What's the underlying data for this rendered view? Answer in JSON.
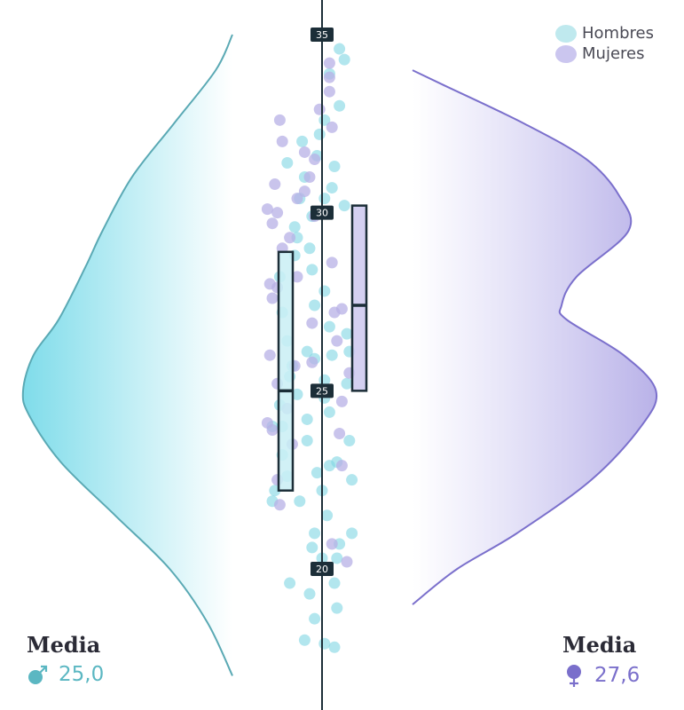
{
  "colors": {
    "male": "#7fd6e3",
    "male_stroke": "#5aa9b4",
    "female": "#b7b0e6",
    "female_stroke": "#7b70cc",
    "axis": "#1c2e38",
    "tick_bg": "#1c2e38",
    "tick_text": "#ffffff",
    "male_text": "#5bb7c2",
    "female_text": "#7a6fcb"
  },
  "legend": [
    {
      "label": "Hombres",
      "color": "#bfe9ee"
    },
    {
      "label": "Mujeres",
      "color": "#cbc6ef"
    }
  ],
  "means": {
    "male": {
      "title": "Media",
      "value": "25,0",
      "icon": "male-symbol-icon"
    },
    "female": {
      "title": "Media",
      "value": "27,6",
      "icon": "female-symbol-icon"
    }
  },
  "chart_data": {
    "type": "raincloud",
    "axis": {
      "min": 17,
      "max": 35,
      "ticks": [
        20,
        25,
        30,
        35
      ]
    },
    "series": [
      {
        "name": "Hombres",
        "box": {
          "q1": 22.2,
          "median": 25.0,
          "q3": 28.9
        },
        "density": [
          {
            "y": 17.0,
            "d": 0.0
          },
          {
            "y": 18.5,
            "d": 0.12
          },
          {
            "y": 20.0,
            "d": 0.3
          },
          {
            "y": 21.5,
            "d": 0.56
          },
          {
            "y": 23.0,
            "d": 0.82
          },
          {
            "y": 24.3,
            "d": 0.97
          },
          {
            "y": 25.0,
            "d": 1.0
          },
          {
            "y": 26.0,
            "d": 0.95
          },
          {
            "y": 27.0,
            "d": 0.83
          },
          {
            "y": 28.5,
            "d": 0.7
          },
          {
            "y": 29.5,
            "d": 0.62
          },
          {
            "y": 31.0,
            "d": 0.48
          },
          {
            "y": 32.5,
            "d": 0.28
          },
          {
            "y": 34.0,
            "d": 0.08
          },
          {
            "y": 35.0,
            "d": 0.0
          }
        ],
        "points": [
          [
            18.0,
            -0.7
          ],
          [
            17.8,
            0.5
          ],
          [
            18.6,
            -0.3
          ],
          [
            18.9,
            0.6
          ],
          [
            19.6,
            -1.3
          ],
          [
            19.3,
            -0.5
          ],
          [
            19.6,
            0.5
          ],
          [
            20.3,
            0.6
          ],
          [
            20.3,
            0.0
          ],
          [
            20.7,
            0.7
          ],
          [
            20.6,
            -0.4
          ],
          [
            21.0,
            1.2
          ],
          [
            21.0,
            -0.3
          ],
          [
            21.5,
            0.2
          ],
          [
            21.9,
            -2.0
          ],
          [
            21.9,
            -0.9
          ],
          [
            22.2,
            -1.9
          ],
          [
            22.2,
            0.0
          ],
          [
            22.5,
            1.2
          ],
          [
            22.6,
            -1.4
          ],
          [
            22.7,
            -0.2
          ],
          [
            22.9,
            0.3
          ],
          [
            23.2,
            -1.6
          ],
          [
            23.6,
            -0.6
          ],
          [
            23.6,
            1.1
          ],
          [
            24.0,
            -2.0
          ],
          [
            24.0,
            -1.6
          ],
          [
            24.2,
            -0.6
          ],
          [
            24.4,
            0.3
          ],
          [
            24.6,
            -1.7
          ],
          [
            24.8,
            0.1
          ],
          [
            24.9,
            -1.0
          ],
          [
            25.2,
            1.0
          ],
          [
            25.3,
            0.1
          ],
          [
            25.4,
            -1.3
          ],
          [
            25.9,
            -0.3
          ],
          [
            25.7,
            -1.2
          ],
          [
            26.0,
            0.4
          ],
          [
            26.1,
            1.1
          ],
          [
            26.1,
            -0.6
          ],
          [
            26.4,
            -1.4
          ],
          [
            26.6,
            1.0
          ],
          [
            26.8,
            0.3
          ],
          [
            27.4,
            -0.3
          ],
          [
            27.2,
            -1.6
          ],
          [
            27.8,
            0.1
          ],
          [
            28.2,
            -1.7
          ],
          [
            28.4,
            -0.4
          ],
          [
            28.8,
            -1.1
          ],
          [
            29.0,
            -0.5
          ],
          [
            29.3,
            -1.0
          ],
          [
            29.6,
            -1.1
          ],
          [
            29.9,
            -0.4
          ],
          [
            30.2,
            0.9
          ],
          [
            30.4,
            0.1
          ],
          [
            30.4,
            -0.9
          ],
          [
            30.7,
            0.4
          ],
          [
            31.0,
            -0.7
          ],
          [
            31.3,
            0.5
          ],
          [
            31.4,
            -1.4
          ],
          [
            31.6,
            -0.2
          ],
          [
            32.0,
            -0.8
          ],
          [
            32.2,
            -0.1
          ],
          [
            32.6,
            0.1
          ],
          [
            33.0,
            0.7
          ],
          [
            33.9,
            0.3
          ],
          [
            34.3,
            0.9
          ],
          [
            34.6,
            0.7
          ],
          [
            17.9,
            0.1
          ],
          [
            23.0,
            0.6
          ]
        ]
      },
      {
        "name": "Mujeres",
        "box": {
          "q1": 25.0,
          "median": 27.4,
          "q3": 30.2
        },
        "density": [
          {
            "y": 19.0,
            "d": 0.0
          },
          {
            "y": 20.0,
            "d": 0.18
          },
          {
            "y": 21.0,
            "d": 0.42
          },
          {
            "y": 22.5,
            "d": 0.72
          },
          {
            "y": 24.0,
            "d": 0.92
          },
          {
            "y": 25.0,
            "d": 0.98
          },
          {
            "y": 26.0,
            "d": 0.85
          },
          {
            "y": 27.0,
            "d": 0.62
          },
          {
            "y": 27.4,
            "d": 0.6
          },
          {
            "y": 28.2,
            "d": 0.66
          },
          {
            "y": 29.5,
            "d": 0.87
          },
          {
            "y": 30.5,
            "d": 0.83
          },
          {
            "y": 31.5,
            "d": 0.7
          },
          {
            "y": 32.5,
            "d": 0.45
          },
          {
            "y": 33.6,
            "d": 0.12
          },
          {
            "y": 34.0,
            "d": 0.0
          }
        ],
        "points": [
          [
            20.2,
            1.0
          ],
          [
            20.7,
            0.4
          ],
          [
            21.8,
            -1.7
          ],
          [
            22.5,
            -1.8
          ],
          [
            22.9,
            0.8
          ],
          [
            23.5,
            -1.2
          ],
          [
            23.8,
            0.7
          ],
          [
            23.9,
            -2.0
          ],
          [
            24.1,
            -2.2
          ],
          [
            24.5,
            -1.4
          ],
          [
            24.7,
            0.8
          ],
          [
            25.2,
            -1.8
          ],
          [
            25.7,
            -1.1
          ],
          [
            25.8,
            -0.4
          ],
          [
            25.5,
            1.1
          ],
          [
            26.4,
            0.6
          ],
          [
            26.9,
            -0.4
          ],
          [
            27.2,
            0.5
          ],
          [
            27.6,
            -2.0
          ],
          [
            27.9,
            -1.8
          ],
          [
            28.0,
            -2.1
          ],
          [
            28.2,
            -1.0
          ],
          [
            28.6,
            0.4
          ],
          [
            29.0,
            -1.6
          ],
          [
            29.3,
            -1.3
          ],
          [
            29.7,
            -2.0
          ],
          [
            29.9,
            -0.3
          ],
          [
            30.0,
            -1.8
          ],
          [
            30.1,
            -2.2
          ],
          [
            30.4,
            -1.0
          ],
          [
            30.6,
            -0.7
          ],
          [
            30.8,
            -1.9
          ],
          [
            31.0,
            -0.5
          ],
          [
            31.5,
            -0.3
          ],
          [
            31.7,
            -0.7
          ],
          [
            32.0,
            -1.6
          ],
          [
            32.4,
            0.4
          ],
          [
            32.6,
            -1.7
          ],
          [
            32.9,
            -0.1
          ],
          [
            33.4,
            0.3
          ],
          [
            33.8,
            0.3
          ],
          [
            34.2,
            0.3
          ],
          [
            27.3,
            0.8
          ],
          [
            26.0,
            -2.1
          ]
        ]
      }
    ]
  }
}
